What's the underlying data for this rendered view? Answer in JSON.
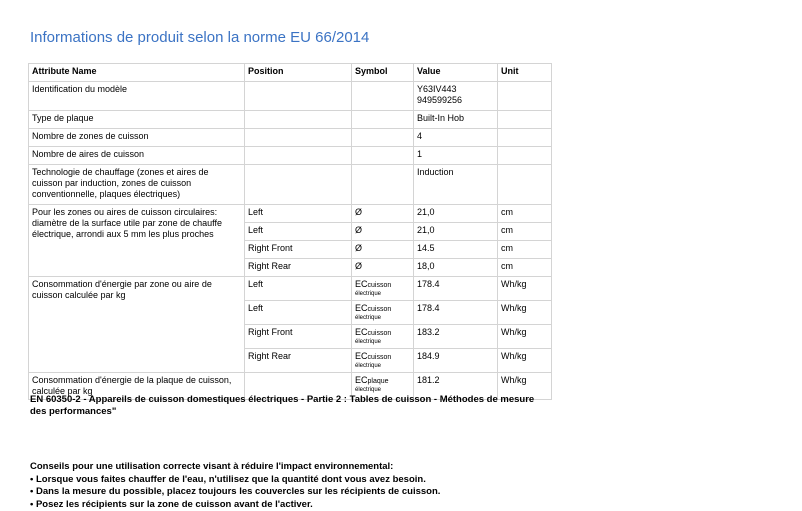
{
  "title": "Informations de produit selon la norme EU 66/2014",
  "table": {
    "headers": [
      "Attribute Name",
      "Position",
      "Symbol",
      "Value",
      "Unit"
    ],
    "rows": [
      {
        "name": "Identification du modèle",
        "value": "Y63IV443",
        "value2": "949599256"
      },
      {
        "name": "Type de plaque",
        "value": "Built-In Hob"
      },
      {
        "name": "Nombre de zones de cuisson",
        "value": "4"
      },
      {
        "name": "Nombre de aires de cuisson",
        "value": "1"
      },
      {
        "name": "Technologie de chauffage (zones et aires de cuisson par induction, zones de cuisson conventionnelle, plaques électriques)",
        "value": "Induction"
      }
    ],
    "diameter": {
      "name": "Pour les zones ou aires de cuisson circulaires: diamètre de la surface utile par zone de chauffe électrique, arrondi aux 5 mm les plus proches",
      "items": [
        {
          "position": "Left",
          "symbol": "Ø",
          "value": "21,0",
          "unit": "cm"
        },
        {
          "position": "Left",
          "symbol": "Ø",
          "value": "21,0",
          "unit": "cm"
        },
        {
          "position": "Right Front",
          "symbol": "Ø",
          "value": "14.5",
          "unit": "cm"
        },
        {
          "position": "Right Rear",
          "symbol": "Ø",
          "value": "18,0",
          "unit": "cm"
        }
      ]
    },
    "energy": {
      "name": "Consommation d'énergie par zone ou aire de cuisson calculée par kg",
      "items": [
        {
          "position": "Left",
          "symbol": "EC",
          "sub": "cuisson",
          "sub2": "électrique",
          "value": "178.4",
          "unit": "Wh/kg"
        },
        {
          "position": "Left",
          "symbol": "EC",
          "sub": "cuisson",
          "sub2": "électrique",
          "value": "178.4",
          "unit": "Wh/kg"
        },
        {
          "position": "Right Front",
          "symbol": "EC",
          "sub": "cuisson",
          "sub2": "électrique",
          "value": "183.2",
          "unit": "Wh/kg"
        },
        {
          "position": "Right Rear",
          "symbol": "EC",
          "sub": "cuisson",
          "sub2": "électrique",
          "value": "184.9",
          "unit": "Wh/kg"
        }
      ]
    },
    "hob": {
      "name": "Consommation d'énergie de la plaque de cuisson, calculée par kg",
      "symbol": "EC",
      "sub": "plaque",
      "sub2": "électrique",
      "value": "181.2",
      "unit": "Wh/kg"
    }
  },
  "standard": "EN 60350-2 - Appareils de cuisson domestiques électriques - Partie 2 : Tables de cuisson - Méthodes de mesure des performances\"",
  "tips": {
    "heading": "Conseils pour une utilisation correcte visant à réduire l'impact environnemental:",
    "items": [
      "• Lorsque vous faites chauffer de l'eau, n'utilisez que la quantité dont vous avez besoin.",
      "• Dans la mesure du possible, placez toujours les couvercles sur les récipients de cuisson.",
      "• Posez les récipients sur la zone de cuisson avant de l'activer."
    ]
  }
}
